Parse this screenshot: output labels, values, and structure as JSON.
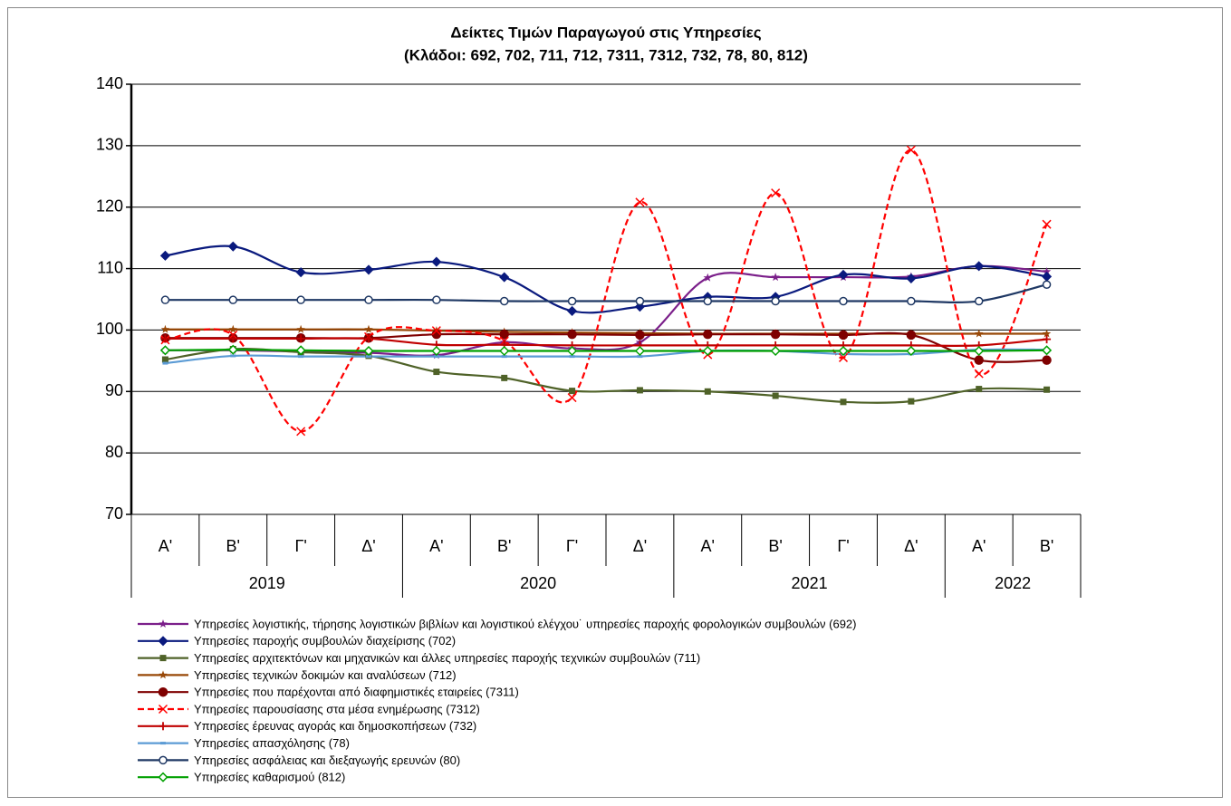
{
  "chart_data": {
    "type": "line",
    "title": "Δείκτες Τιμών Παραγωγού στις Υπηρεσίες",
    "subtitle": "(Κλάδοι: 692, 702, 711, 712, 7311, 7312, 732, 78, 80, 812)",
    "categories": [
      "Α'",
      "Β'",
      "Γ'",
      "Δ'",
      "Α'",
      "Β'",
      "Γ'",
      "Δ'",
      "Α'",
      "Β'",
      "Γ'",
      "Δ'",
      "Α'",
      "Β'"
    ],
    "category_groups": [
      "2019",
      null,
      null,
      null,
      "2020",
      null,
      null,
      null,
      "2021",
      null,
      null,
      null,
      "2022",
      null
    ],
    "ylim": [
      70,
      140
    ],
    "yticks": [
      70,
      80,
      90,
      100,
      110,
      120,
      130,
      140
    ],
    "grid": true,
    "smooth": true,
    "legend": "bottom",
    "series": [
      {
        "name": "Υπηρεσίες λογιστικής, τήρησης λογιστικών βιβλίων και λογιστικού ελέγχου˙ υπηρεσίες παροχής φορολογικών συμβουλών (692)",
        "color": "#7b1f8a",
        "marker": "star",
        "dash": false,
        "values": [
          96.7,
          96.7,
          96.5,
          96.3,
          95.9,
          98.0,
          97.0,
          98.0,
          108.5,
          108.6,
          108.6,
          108.7,
          110.4,
          109.5
        ]
      },
      {
        "name": "Υπηρεσίες παροχής συμβουλών διαχείρισης (702)",
        "color": "#0a1a7e",
        "marker": "diamond",
        "dash": false,
        "values": [
          112.1,
          113.6,
          109.4,
          109.8,
          111.1,
          108.6,
          103.1,
          103.8,
          105.4,
          105.4,
          109.0,
          108.4,
          110.4,
          108.7
        ]
      },
      {
        "name": "Υπηρεσίες αρχιτεκτόνων και μηχανικών και άλλες υπηρεσίες παροχής τεχνικών συμβουλών (711)",
        "color": "#4f6228",
        "marker": "square",
        "dash": false,
        "values": [
          95.2,
          96.9,
          96.4,
          95.8,
          93.2,
          92.2,
          90.1,
          90.2,
          90.0,
          89.3,
          88.3,
          88.4,
          90.4,
          90.3
        ]
      },
      {
        "name": "Υπηρεσίες τεχνικών δοκιμών και αναλύσεων (712)",
        "color": "#984807",
        "marker": "star",
        "dash": false,
        "values": [
          100.1,
          100.1,
          100.1,
          100.1,
          99.9,
          99.7,
          99.6,
          99.5,
          99.4,
          99.4,
          99.4,
          99.4,
          99.4,
          99.4
        ]
      },
      {
        "name": "Υπηρεσίες που παρέχονται από διαφημιστικές εταιρείες (7311)",
        "color": "#7f0000",
        "marker": "circle",
        "dash": false,
        "values": [
          98.7,
          98.7,
          98.7,
          98.7,
          99.3,
          99.3,
          99.3,
          99.2,
          99.3,
          99.3,
          99.2,
          99.2,
          95.1,
          95.1
        ]
      },
      {
        "name": "Υπηρεσίες παρουσίασης στα μέσα ενημέρωσης (7312)",
        "color": "#ff0000",
        "marker": "x",
        "dash": true,
        "values": [
          98.4,
          99.2,
          83.5,
          98.9,
          99.9,
          98.2,
          89.0,
          120.8,
          96.0,
          122.3,
          95.5,
          129.3,
          92.9,
          117.2
        ]
      },
      {
        "name": "Υπηρεσίες έρευνας αγοράς και δημοσκοπήσεων (732)",
        "color": "#c00000",
        "marker": "plus",
        "dash": false,
        "values": [
          98.6,
          98.6,
          98.6,
          98.6,
          97.6,
          97.6,
          97.5,
          97.5,
          97.5,
          97.5,
          97.5,
          97.5,
          97.5,
          98.5
        ]
      },
      {
        "name": "Υπηρεσίες απασχόλησης (78)",
        "color": "#5b9bd5",
        "marker": "dash",
        "dash": false,
        "values": [
          94.6,
          95.8,
          95.7,
          95.7,
          95.7,
          95.7,
          95.7,
          95.7,
          96.6,
          96.6,
          96.1,
          96.1,
          96.8,
          96.8
        ]
      },
      {
        "name": "Υπηρεσίες ασφάλειας και διεξαγωγής ερευνών (80)",
        "color": "#1f3864",
        "marker": "circle-open",
        "dash": false,
        "values": [
          104.9,
          104.9,
          104.9,
          104.9,
          104.9,
          104.7,
          104.7,
          104.7,
          104.7,
          104.7,
          104.7,
          104.7,
          104.7,
          107.4
        ]
      },
      {
        "name": "Υπηρεσίες καθαρισμού (812)",
        "color": "#00a000",
        "marker": "diamond-open",
        "dash": false,
        "values": [
          96.7,
          96.8,
          96.7,
          96.6,
          96.6,
          96.6,
          96.6,
          96.6,
          96.6,
          96.6,
          96.6,
          96.6,
          96.6,
          96.7
        ]
      }
    ]
  }
}
